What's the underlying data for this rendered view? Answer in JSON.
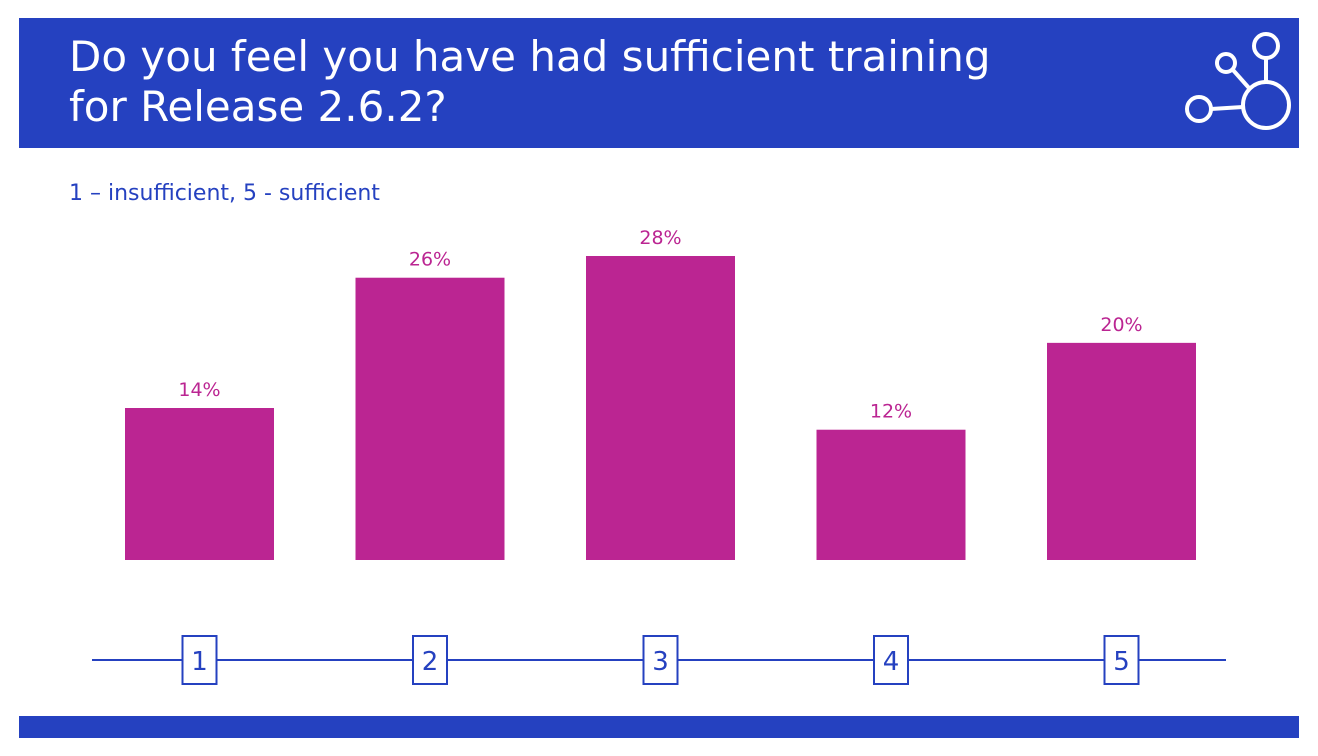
{
  "slide": {
    "title": "Do you feel you have had sufficient training\nfor Release 2.6.2?",
    "subtitle": "1 – insufficient, 5 - sufficient",
    "logo_icon": "network-nodes-icon"
  },
  "colors": {
    "brand": "#2541c0",
    "bar": "#bb2592",
    "label": "#bb2592",
    "axis": "#2541c0"
  },
  "chart_data": {
    "type": "bar",
    "title": "",
    "xlabel": "",
    "ylabel": "",
    "categories": [
      "1",
      "2",
      "3",
      "4",
      "5"
    ],
    "values": [
      14,
      26,
      28,
      12,
      20
    ],
    "data_labels": [
      "14%",
      "26%",
      "28%",
      "12%",
      "20%"
    ],
    "unit": "%",
    "ylim": [
      0,
      28
    ],
    "grid": false,
    "legend": "none"
  }
}
